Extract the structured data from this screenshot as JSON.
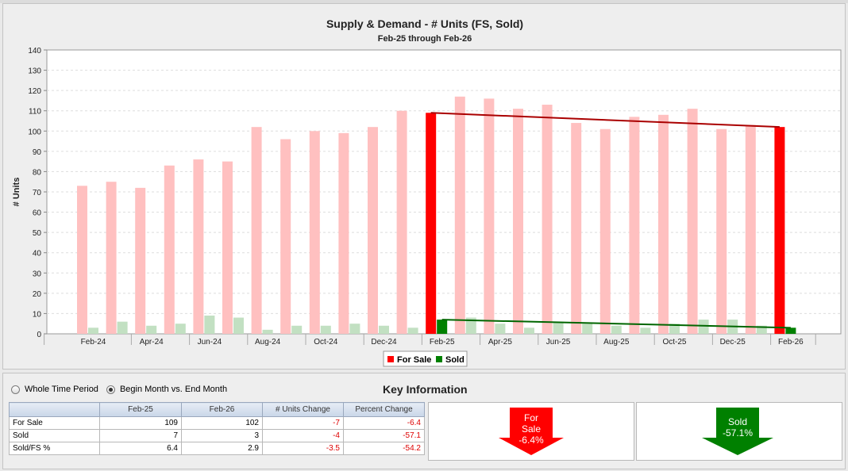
{
  "chart_data": {
    "type": "bar",
    "title": "Supply & Demand - # Units (FS, Sold)",
    "subtitle": "Feb-25 through Feb-26",
    "ylabel": "# Units",
    "xlabel": "",
    "ylim": [
      0,
      140
    ],
    "yticks": [
      0,
      10,
      20,
      30,
      40,
      50,
      60,
      70,
      80,
      90,
      100,
      110,
      120,
      130,
      140
    ],
    "grid": true,
    "legend_position": "bottom-center",
    "categories": [
      "Feb-24",
      "Mar-24",
      "Apr-24",
      "May-24",
      "Jun-24",
      "Jul-24",
      "Aug-24",
      "Sep-24",
      "Oct-24",
      "Nov-24",
      "Dec-24",
      "Jan-25",
      "Feb-25",
      "Mar-25",
      "Apr-25",
      "May-25",
      "Jun-25",
      "Jul-25",
      "Aug-25",
      "Sep-25",
      "Oct-25",
      "Nov-25",
      "Dec-25",
      "Jan-26",
      "Feb-26"
    ],
    "tick_labels": [
      "Feb-24",
      "Apr-24",
      "Jun-24",
      "Aug-24",
      "Oct-24",
      "Dec-24",
      "Feb-25",
      "Apr-25",
      "Jun-25",
      "Aug-25",
      "Oct-25",
      "Dec-25",
      "Feb-26"
    ],
    "series": [
      {
        "name": "For Sale",
        "color": "#ff0000",
        "faded_color": "#ffc0c0",
        "values": [
          73,
          75,
          72,
          83,
          86,
          85,
          102,
          96,
          100,
          99,
          102,
          110,
          109,
          117,
          116,
          111,
          113,
          104,
          101,
          107,
          108,
          111,
          101,
          103,
          102
        ]
      },
      {
        "name": "Sold",
        "color": "#008000",
        "faded_color": "#c2e0c2",
        "values": [
          3,
          6,
          4,
          5,
          9,
          8,
          2,
          4,
          4,
          5,
          4,
          3,
          7,
          8,
          5,
          3,
          6,
          5,
          4,
          3,
          5,
          7,
          7,
          4,
          3
        ]
      }
    ],
    "highlighted_categories": [
      "Feb-25",
      "Feb-26"
    ],
    "trend_lines": [
      {
        "series": "For Sale",
        "from": [
          "Feb-25",
          109
        ],
        "to": [
          "Feb-26",
          102
        ],
        "color": "#aa0000"
      },
      {
        "series": "Sold",
        "from": [
          "Feb-25",
          7
        ],
        "to": [
          "Feb-26",
          3
        ],
        "color": "#006600"
      }
    ]
  },
  "controls": {
    "radio_whole": "Whole Time Period",
    "radio_begin_end": "Begin Month vs. End Month",
    "selected": "begin_end"
  },
  "key_info": {
    "title": "Key Information",
    "headers": [
      "",
      "Feb-25",
      "Feb-26",
      "# Units Change",
      "Percent Change"
    ],
    "rows": [
      {
        "label": "For Sale",
        "start": "109",
        "end": "102",
        "change": "-7",
        "pct": "-6.4"
      },
      {
        "label": "Sold",
        "start": "7",
        "end": "3",
        "change": "-4",
        "pct": "-57.1"
      },
      {
        "label": "Sold/FS %",
        "start": "6.4",
        "end": "2.9",
        "change": "-3.5",
        "pct": "-54.2"
      }
    ]
  },
  "arrows": {
    "for_sale": {
      "line1": "For",
      "line2": "Sale",
      "line3": "-6.4%",
      "color": "#ff0000",
      "direction": "down"
    },
    "sold": {
      "line1": "Sold",
      "line2": "-57.1%",
      "color": "#008000",
      "direction": "down"
    }
  }
}
